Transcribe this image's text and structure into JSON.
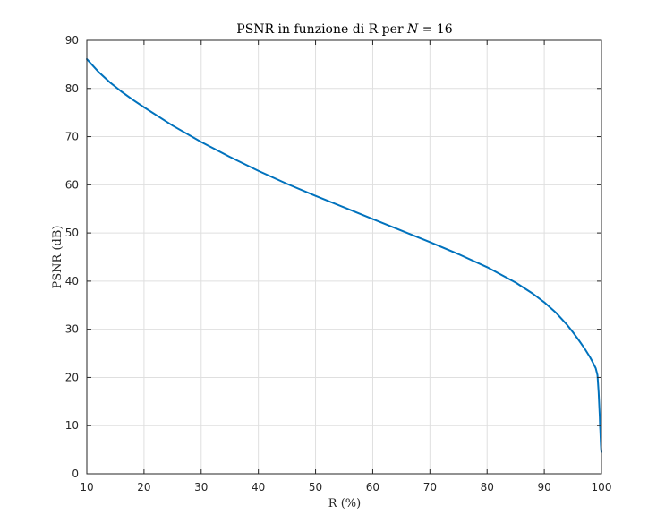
{
  "chart_data": {
    "type": "line",
    "title": "PSNR in funzione di R per N = 16",
    "title_parts": {
      "prefix": "PSNR in funzione di R per ",
      "var": "N",
      "suffix": " = 16"
    },
    "xlabel": "R (%)",
    "ylabel": "PSNR (dB)",
    "xlim": [
      10,
      100
    ],
    "ylim": [
      0,
      90
    ],
    "xticks": [
      10,
      20,
      30,
      40,
      50,
      60,
      70,
      80,
      90,
      100
    ],
    "yticks": [
      0,
      10,
      20,
      30,
      40,
      50,
      60,
      70,
      80,
      90
    ],
    "grid": true,
    "series": [
      {
        "color": "#0072bd",
        "x": [
          10,
          12,
          14,
          16,
          18,
          20,
          25,
          30,
          35,
          40,
          45,
          50,
          55,
          60,
          65,
          70,
          75,
          80,
          85,
          88,
          90,
          92,
          94,
          95,
          96,
          97,
          98,
          98.5,
          99,
          99.3,
          99.5,
          99.7,
          99.75,
          99.8,
          99.85,
          99.9,
          99.95,
          100
        ],
        "y": [
          86.1,
          83.5,
          81.3,
          79.4,
          77.7,
          76.1,
          72.3,
          68.9,
          65.8,
          62.9,
          60.2,
          57.7,
          55.3,
          52.9,
          50.5,
          48.1,
          45.6,
          42.9,
          39.7,
          37.4,
          35.6,
          33.5,
          30.9,
          29.4,
          27.8,
          26.1,
          24.2,
          23.1,
          21.9,
          20.5,
          17.0,
          12.0,
          10.0,
          9.0,
          7.5,
          6.0,
          5.0,
          4.5
        ]
      }
    ]
  }
}
